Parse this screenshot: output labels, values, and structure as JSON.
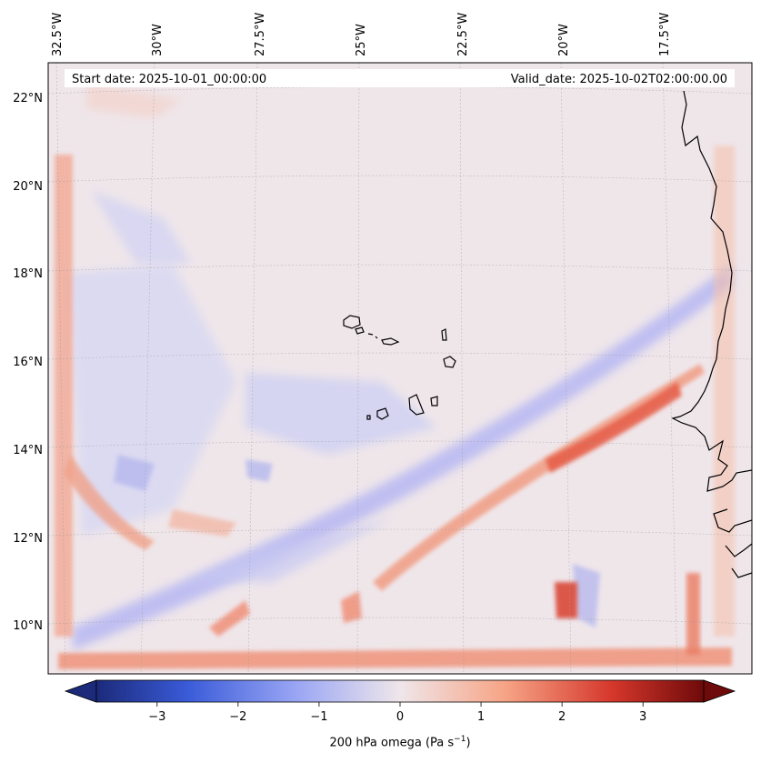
{
  "map": {
    "start_date": "Start date: 2025-10-01_00:00:00",
    "valid_date": "Valid_date: 2025-10-02T02:00:00.00",
    "lon_labels": [
      "32.5°W",
      "30°W",
      "27.5°W",
      "25°W",
      "22.5°W",
      "20°W",
      "17.5°W"
    ],
    "lat_labels": [
      "22°N",
      "20°N",
      "18°N",
      "16°N",
      "14°N",
      "12°N",
      "10°N"
    ],
    "gridlines": true,
    "field": "200 hPa omega",
    "colormap": "coolwarm (blue = negative, red = positive)",
    "colors": {
      "negative_max": "#1b2a7a",
      "zero": "#efe6ea",
      "positive_max": "#6e0a0a",
      "coast": "#000000"
    }
  },
  "colorbar": {
    "ticks": [
      "−3",
      "−2",
      "−1",
      "0",
      "1",
      "2",
      "3"
    ],
    "tick_values": [
      -3,
      -2,
      -1,
      0,
      1,
      2,
      3
    ],
    "range": [
      -3.75,
      3.75
    ],
    "extend": "both",
    "label_text": "200 hPa omega (Pa s",
    "label_unit_exp": "−1",
    "label_close": ")"
  }
}
